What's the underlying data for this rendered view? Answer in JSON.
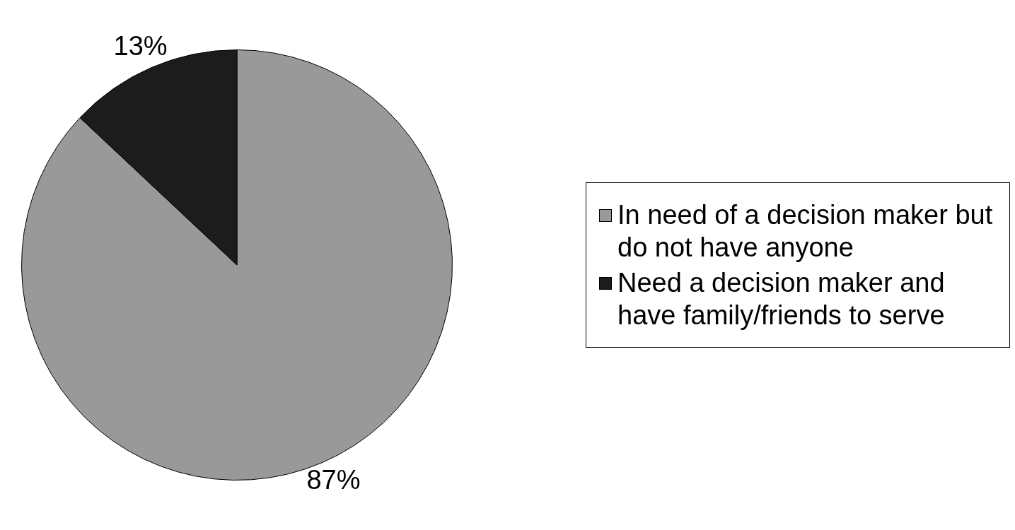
{
  "chart_data": {
    "type": "pie",
    "categories": [
      "In need of a decision maker but do not have anyone",
      "Need a decision maker and have family/friends to serve"
    ],
    "values": [
      87,
      13
    ],
    "colors": [
      "#999999",
      "#1c1c1c"
    ],
    "value_labels": [
      "87%",
      "13%"
    ],
    "legend": "right"
  }
}
